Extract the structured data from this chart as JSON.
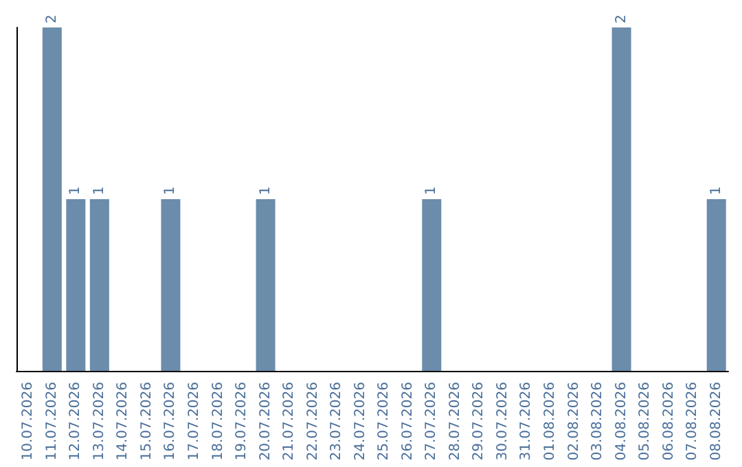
{
  "chart_data": {
    "type": "bar",
    "categories": [
      "10.07.2026",
      "11.07.2026",
      "12.07.2026",
      "13.07.2026",
      "14.07.2026",
      "15.07.2026",
      "16.07.2026",
      "17.07.2026",
      "18.07.2026",
      "19.07.2026",
      "20.07.2026",
      "21.07.2026",
      "22.07.2026",
      "23.07.2026",
      "24.07.2026",
      "25.07.2026",
      "26.07.2026",
      "27.07.2026",
      "28.07.2026",
      "29.07.2026",
      "30.07.2026",
      "31.07.2026",
      "01.08.2026",
      "02.08.2026",
      "03.08.2026",
      "04.08.2026",
      "05.08.2026",
      "06.08.2026",
      "07.08.2026",
      "08.08.2026"
    ],
    "values": [
      0,
      2,
      1,
      1,
      0,
      0,
      1,
      0,
      0,
      0,
      1,
      0,
      0,
      0,
      0,
      0,
      0,
      1,
      0,
      0,
      0,
      0,
      0,
      0,
      0,
      2,
      0,
      0,
      0,
      1
    ],
    "color": "#6b8cab",
    "value_labels": [
      null,
      "2",
      "1",
      "1",
      null,
      null,
      "1",
      null,
      null,
      null,
      "1",
      null,
      null,
      null,
      null,
      null,
      null,
      "1",
      null,
      null,
      null,
      null,
      null,
      null,
      null,
      "2",
      null,
      null,
      null,
      "1"
    ],
    "grid": false
  }
}
